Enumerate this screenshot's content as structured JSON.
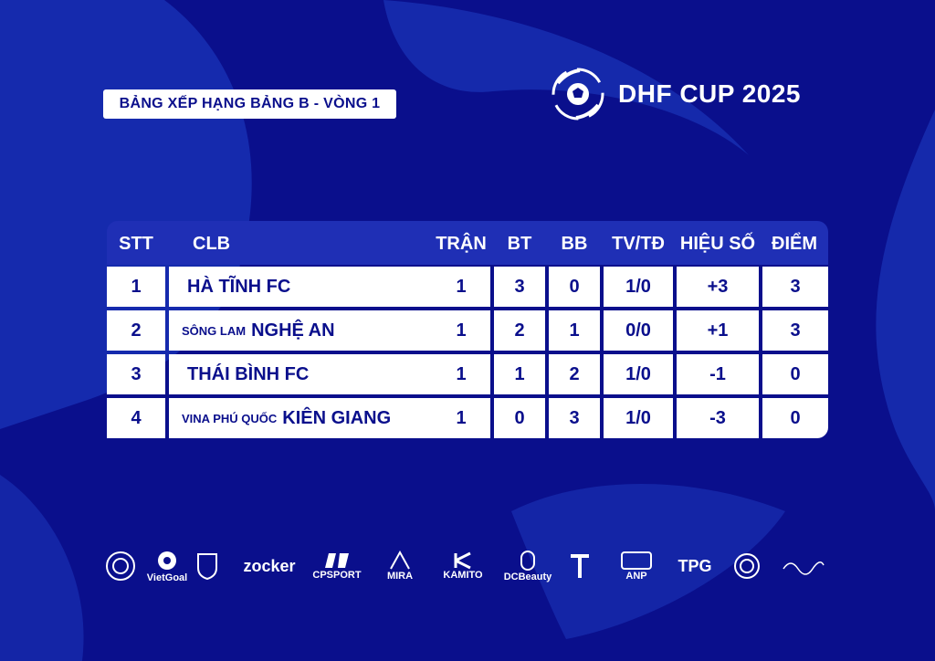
{
  "title": "BẢNG XẾP HẠNG BẢNG B - VÒNG 1",
  "brand": {
    "name": "DHF CUP 2025",
    "logo_icon": "soccer-ball-swirl-icon"
  },
  "colors": {
    "background": "#0a0f8c",
    "header": "#1f2fb5",
    "row": "#ffffff",
    "text": "#0a0f8c"
  },
  "table": {
    "columns": [
      "STT",
      "CLB",
      "TRẬN",
      "BT",
      "BB",
      "TV/TĐ",
      "HIỆU SỐ",
      "ĐIỂM"
    ],
    "rows": [
      {
        "stt": "1",
        "club_prefix": "",
        "club": "HÀ TĨNH FC",
        "tran": "1",
        "bt": "3",
        "bb": "0",
        "tvtd": "1/0",
        "hieu_so": "+3",
        "diem": "3"
      },
      {
        "stt": "2",
        "club_prefix": "SÔNG LAM",
        "club": "NGHỆ AN",
        "tran": "1",
        "bt": "2",
        "bb": "1",
        "tvtd": "0/0",
        "hieu_so": "+1",
        "diem": "3"
      },
      {
        "stt": "3",
        "club_prefix": "",
        "club": "THÁI BÌNH FC",
        "tran": "1",
        "bt": "1",
        "bb": "2",
        "tvtd": "1/0",
        "hieu_so": "-1",
        "diem": "0"
      },
      {
        "stt": "4",
        "club_prefix": "VINA PHÚ QUỐC",
        "club": "KIÊN GIANG",
        "tran": "1",
        "bt": "0",
        "bb": "3",
        "tvtd": "1/0",
        "hieu_so": "-3",
        "diem": "0"
      }
    ]
  },
  "sponsors": [
    {
      "name": "",
      "icon": "round-seal-logo-icon"
    },
    {
      "name": "VietGoal",
      "icon": "vietgoal-logo-icon"
    },
    {
      "name": "",
      "icon": "shield-crest-logo-icon"
    },
    {
      "name": "zocker",
      "icon": "zocker-wordmark-icon"
    },
    {
      "name": "CPSPORT",
      "icon": "cpsport-logo-icon"
    },
    {
      "name": "MIRA",
      "icon": "mira-logo-icon"
    },
    {
      "name": "KAMITO",
      "icon": "kamito-logo-icon"
    },
    {
      "name": "DCBeauty",
      "icon": "dcbeauty-logo-icon"
    },
    {
      "name": "",
      "icon": "td-logo-icon"
    },
    {
      "name": "ANP",
      "icon": "anp-logo-icon"
    },
    {
      "name": "TPG",
      "icon": "tpg-logo-icon"
    },
    {
      "name": "",
      "icon": "dq-round-logo-icon"
    },
    {
      "name": "",
      "icon": "handwritten-brand-logo-icon"
    }
  ]
}
